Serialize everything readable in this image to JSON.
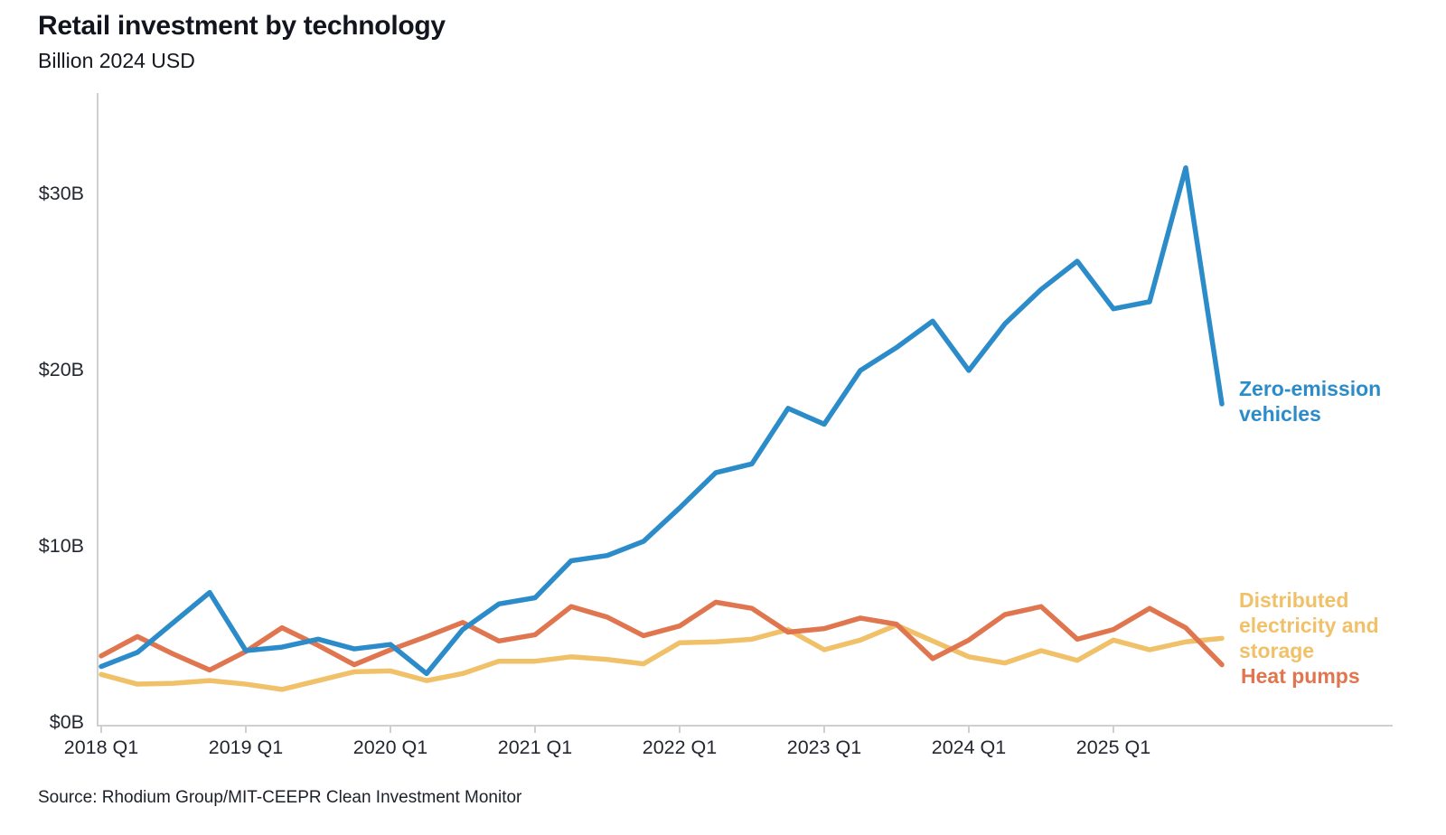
{
  "header": {
    "title": "Retail investment by technology",
    "subtitle": "Billion 2024 USD"
  },
  "source": {
    "text": "Source: Rhodium Group/MIT-CEEPR Clean Investment Monitor"
  },
  "colors": {
    "zero_emission_vehicles": "#2b8cc9",
    "heat_pumps": "#e0764f",
    "distributed_electricity_storage": "#f0c169",
    "axis_line": "#cfcfcf",
    "text_dark": "#12151d"
  },
  "chart_data": {
    "type": "line",
    "title": "Retail investment by technology",
    "subtitle": "Billion 2024 USD",
    "xlabel": "",
    "ylabel": "Billion 2024 USD",
    "grid": false,
    "legend_position": "right-end-of-lines",
    "ylim": [
      0,
      35
    ],
    "y_ticks": [
      0,
      10,
      20,
      30
    ],
    "y_tick_labels": [
      "$0B",
      "$10B",
      "$20B",
      "$30B"
    ],
    "x_tick_labels": [
      "2018 Q1",
      "2019 Q1",
      "2020 Q1",
      "2021 Q1",
      "2022 Q1",
      "2023 Q1",
      "2024 Q1",
      "2025 Q1"
    ],
    "x_quarters": [
      "2018 Q1",
      "2018 Q2",
      "2018 Q3",
      "2018 Q4",
      "2019 Q1",
      "2019 Q2",
      "2019 Q3",
      "2019 Q4",
      "2020 Q1",
      "2020 Q2",
      "2020 Q3",
      "2020 Q4",
      "2021 Q1",
      "2021 Q2",
      "2021 Q3",
      "2021 Q4",
      "2022 Q1",
      "2022 Q2",
      "2022 Q3",
      "2022 Q4",
      "2023 Q1",
      "2023 Q2",
      "2023 Q3",
      "2023 Q4",
      "2024 Q1",
      "2024 Q2",
      "2024 Q3",
      "2024 Q4",
      "2025 Q1",
      "2025 Q2",
      "2025 Q3",
      "2025 Q4"
    ],
    "series": [
      {
        "name": "Distributed electricity and storage",
        "color": "#f0c169",
        "values": [
          2.65,
          2.1,
          2.15,
          2.3,
          2.1,
          1.8,
          2.3,
          2.8,
          2.85,
          2.3,
          2.7,
          3.4,
          3.4,
          3.65,
          3.5,
          3.25,
          4.45,
          4.5,
          4.65,
          5.2,
          4.05,
          4.6,
          5.45,
          4.55,
          3.65,
          3.3,
          4.0,
          3.45,
          4.6,
          4.05,
          4.5,
          4.7
        ]
      },
      {
        "name": "Heat pumps",
        "color": "#e0764f",
        "values": [
          3.7,
          4.8,
          3.8,
          2.9,
          3.95,
          5.3,
          4.3,
          3.2,
          4.05,
          4.8,
          5.6,
          4.55,
          4.9,
          6.5,
          5.9,
          4.85,
          5.4,
          6.75,
          6.4,
          5.05,
          5.25,
          5.85,
          5.5,
          3.55,
          4.6,
          6.05,
          6.5,
          4.65,
          5.2,
          6.4,
          5.3,
          3.2
        ]
      },
      {
        "name": "Zero-emission vehicles",
        "color": "#2b8cc9",
        "values": [
          3.1,
          3.9,
          5.6,
          7.3,
          4.0,
          4.2,
          4.65,
          4.1,
          4.35,
          2.7,
          5.2,
          6.65,
          7.0,
          9.1,
          9.4,
          10.2,
          12.1,
          14.1,
          14.6,
          17.75,
          16.85,
          19.9,
          21.2,
          22.7,
          19.9,
          22.55,
          24.5,
          26.1,
          23.4,
          23.8,
          31.4,
          18.0
        ]
      }
    ]
  }
}
